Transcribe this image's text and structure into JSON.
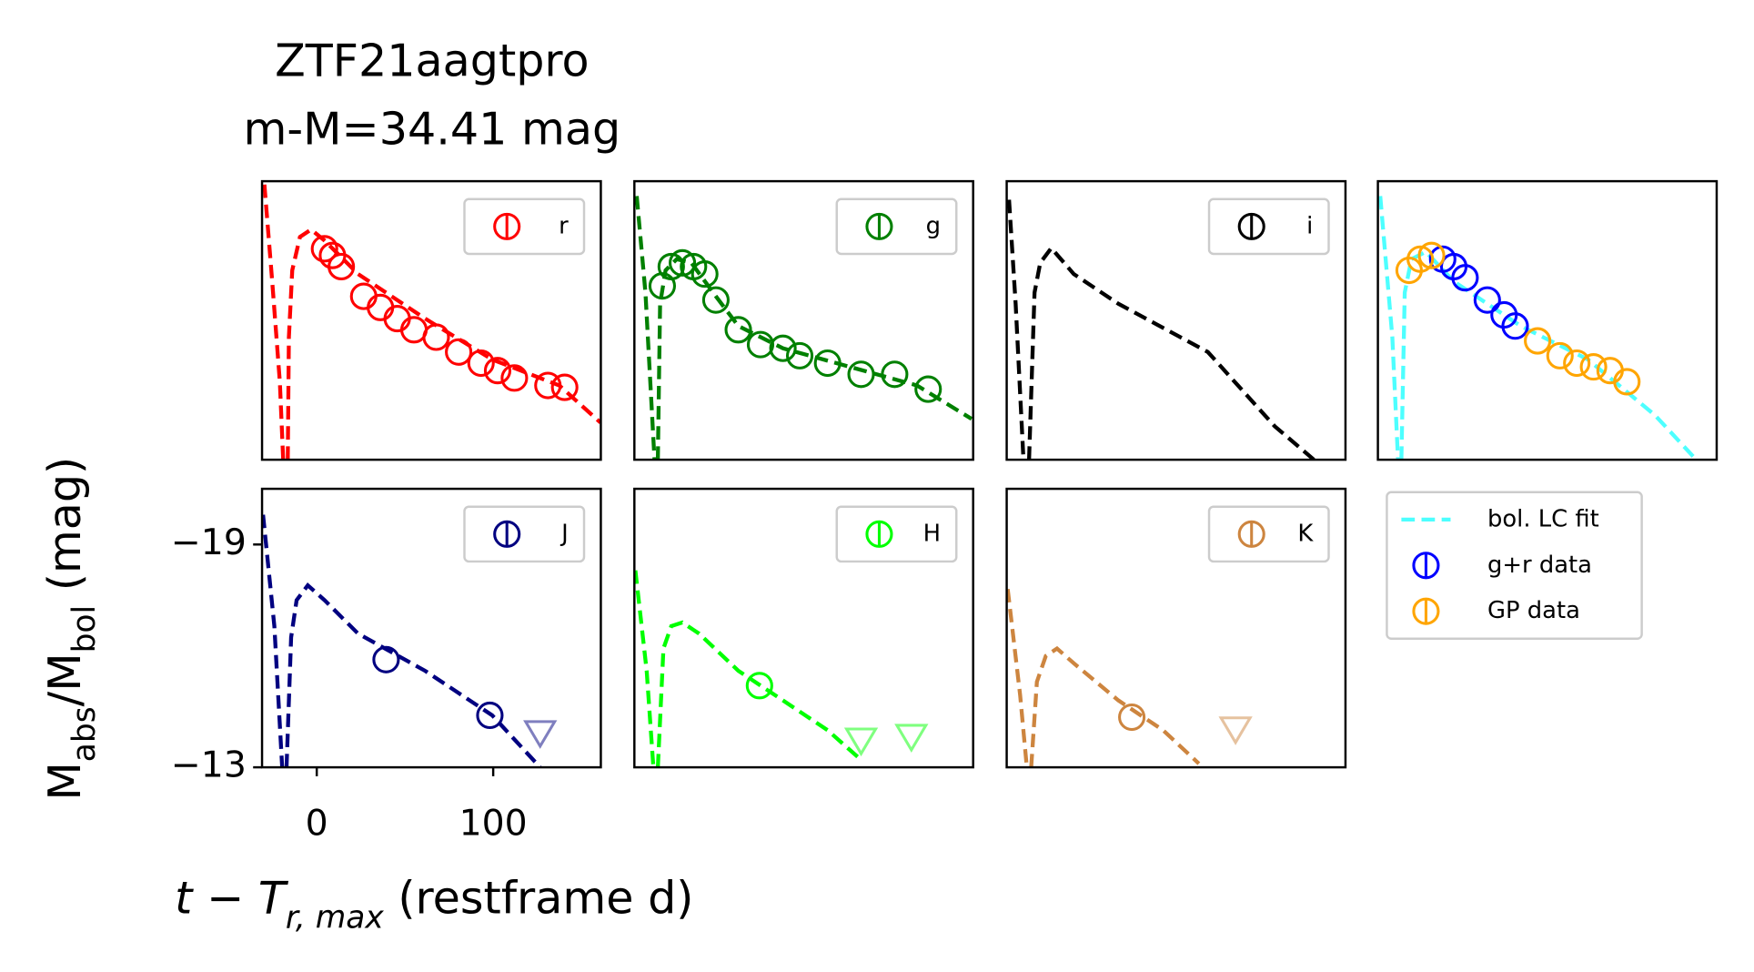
{
  "chart_data": {
    "type": "line",
    "title": "ZTF21aagtpro",
    "subtitle": "m-M=34.41 mag",
    "x_label": [
      "t − T",
      "r, max",
      " (restframe d)"
    ],
    "y_label": [
      "M",
      "abs",
      "/M",
      "bol",
      " (mag)"
    ],
    "xlim": [
      -31,
      161
    ],
    "ylim": [
      -13,
      -20.5
    ],
    "panels": [
      {
        "legend": "upper right",
        "series": [
          {
            "style": "dashed",
            "color": "#ff0000",
            "x": [
              -29.7,
              -25.3,
              -20.9,
              -19.0,
              null,
              -16.4,
              -15.8,
              -13.9,
              -9.5,
              -3.2,
              4.4,
              23.4,
              61.4,
              99.4,
              137.4,
              160.8
            ],
            "values": [
              -20.41,
              -17.83,
              -15.1,
              -13.0,
              null,
              -13.0,
              -16.3,
              -18.1,
              -19.0,
              -19.2,
              -18.9,
              -18.0,
              -16.8,
              -15.7,
              -15.0,
              -14.0
            ]
          },
          {
            "name": "r",
            "style": "markers",
            "color": "#ff0000",
            "x": [
              4.4,
              8.9,
              13.9,
              26.6,
              36.1,
              45.6,
              55.1,
              67.7,
              80.4,
              93.1,
              102.5,
              112.0,
              131.0,
              140.5
            ],
            "values": [
              -18.68,
              -18.5,
              -18.2,
              -17.4,
              -17.1,
              -16.8,
              -16.5,
              -16.3,
              -15.9,
              -15.6,
              -15.4,
              -15.2,
              -15.0,
              -14.95
            ]
          }
        ]
      },
      {
        "legend": "upper right",
        "series": [
          {
            "style": "dashed",
            "color": "#008000",
            "x": [
              -29.7,
              -24.7,
              -19.6,
              null,
              -17.7,
              -16.4,
              -13.3,
              -7.0,
              1.3,
              15.2,
              27.9,
              53.2,
              91.2,
              129.1,
              160.1
            ],
            "values": [
              -20.1,
              -17.5,
              -13.0,
              null,
              -13.0,
              -17.2,
              -18.1,
              -18.4,
              -18.3,
              -17.4,
              -16.6,
              -16.0,
              -15.5,
              -15.0,
              -14.1
            ]
          },
          {
            "name": "g",
            "style": "markers",
            "color": "#008000",
            "x": [
              -15.2,
              -10.1,
              -3.8,
              2.5,
              8.9,
              15.2,
              27.9,
              40.5,
              53.2,
              62.7,
              78.5,
              97.5,
              116.5,
              135.5
            ],
            "values": [
              -17.68,
              -18.2,
              -18.3,
              -18.2,
              -18.0,
              -17.3,
              -16.5,
              -16.1,
              -16.0,
              -15.8,
              -15.6,
              -15.3,
              -15.3,
              -14.9
            ]
          }
        ]
      },
      {
        "legend": "upper right",
        "series": [
          {
            "style": "dashed",
            "color": "#000000",
            "x": [
              -29.7,
              -25.9,
              -21.5,
              null,
              -18.3,
              -15.2,
              -12.0,
              -5.7,
              7.0,
              32.3,
              83.0,
              120.9,
              143.1
            ],
            "values": [
              -20.0,
              -17.2,
              -13.0,
              null,
              -13.0,
              -17.5,
              -18.3,
              -18.7,
              -18.0,
              -17.2,
              -15.9,
              -13.9,
              -13.0
            ]
          },
          {
            "name": "i",
            "style": "markers",
            "color": "#000000",
            "x": [],
            "values": []
          }
        ]
      },
      {
        "legend": "below",
        "series": [
          {
            "name": "bol. LC fit",
            "style": "dashed",
            "color": "#4dffff",
            "x": [
              -29.7,
              -22.8,
              -19.6,
              null,
              -17.7,
              -15.8,
              -12.0,
              -3.8,
              12.0,
              50.0,
              88.0,
              126.0,
              149.4
            ],
            "values": [
              -20.1,
              -16.3,
              -13.0,
              null,
              -13.0,
              -17.5,
              -18.4,
              -18.6,
              -17.8,
              -16.6,
              -15.7,
              -14.2,
              -13.0
            ]
          },
          {
            "name": "g+r data",
            "style": "markers",
            "color": "#0000ff",
            "x": [
              5.7,
              12.0,
              18.4,
              31.0,
              40.5,
              46.8
            ],
            "values": [
              -18.4,
              -18.2,
              -17.9,
              -17.3,
              -16.9,
              -16.6
            ]
          },
          {
            "name": "GP data",
            "style": "markers",
            "color": "#ffa500",
            "x": [
              -13.3,
              -7.0,
              -0.6,
              59.5,
              72.2,
              81.7,
              91.2,
              100.6,
              110.1
            ],
            "values": [
              -18.1,
              -18.4,
              -18.5,
              -16.2,
              -15.8,
              -15.6,
              -15.5,
              -15.4,
              -15.1
            ]
          }
        ]
      },
      {
        "legend": "upper right",
        "xticks": [
          0,
          100
        ],
        "yticks": [
          {
            "value": -19,
            "label": "−19"
          },
          {
            "value": -13,
            "label": "−13"
          }
        ],
        "series": [
          {
            "style": "dashed",
            "color": "#000080",
            "x": [
              -30.4,
              -24.0,
              -19.6,
              null,
              -17.1,
              -14.5,
              -11.4,
              -5.1,
              4.4,
              23.4,
              61.4,
              99.4,
              126.6
            ],
            "values": [
              -19.8,
              -16.8,
              -13.0,
              null,
              -13.0,
              -16.5,
              -17.5,
              -17.9,
              -17.5,
              -16.6,
              -15.6,
              -14.4,
              -13.0
            ]
          },
          {
            "name": "J",
            "style": "markers",
            "color": "#000080",
            "x": [
              39.3,
              98.1
            ],
            "values": [
              -15.9,
              -14.4
            ]
          },
          {
            "style": "limits",
            "color": "#000080",
            "x": [
              126.6
            ],
            "values": [
              -13.9
            ]
          }
        ]
      },
      {
        "legend": "upper right",
        "series": [
          {
            "style": "dashed",
            "color": "#00ff00",
            "x": [
              -30.4,
              -24.0,
              -20.2,
              null,
              -17.7,
              -14.5,
              -10.1,
              -3.8,
              5.7,
              27.9,
              53.2,
              78.5,
              97.5
            ],
            "values": [
              -18.3,
              -15.6,
              -13.0,
              null,
              -13.0,
              -16.2,
              -16.8,
              -16.9,
              -16.6,
              -15.6,
              -14.8,
              -14.0,
              -13.2
            ]
          },
          {
            "name": "H",
            "style": "markers",
            "color": "#00ff00",
            "x": [
              39.9
            ],
            "values": [
              -15.2
            ]
          },
          {
            "style": "limits",
            "color": "#00ff00",
            "x": [
              97.5,
              126.0
            ],
            "values": [
              -13.7,
              -13.8
            ]
          }
        ]
      },
      {
        "legend": "upper right",
        "series": [
          {
            "style": "dashed",
            "color": "#cd853f",
            "x": [
              -30.4,
              -23.4,
              -19.6,
              null,
              -17.1,
              -13.9,
              -8.8,
              -2.5,
              7.0,
              32.3,
              57.6,
              77.9
            ],
            "values": [
              -17.8,
              -14.95,
              -13.0,
              null,
              -13.0,
              -15.3,
              -16.0,
              -16.2,
              -15.8,
              -14.8,
              -14.0,
              -13.1
            ]
          },
          {
            "name": "K",
            "style": "markers",
            "color": "#cd853f",
            "x": [
              39.9
            ],
            "values": [
              -14.35
            ]
          },
          {
            "style": "limits",
            "color": "#cd853f",
            "x": [
              98.7
            ],
            "values": [
              -14.0
            ]
          }
        ]
      }
    ]
  }
}
